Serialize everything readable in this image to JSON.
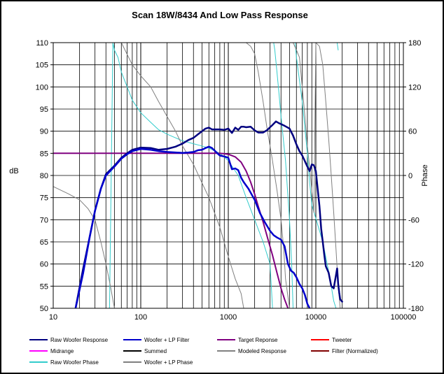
{
  "chart_data": {
    "type": "line",
    "title": "Scan 18W/8434   And Low Pass Response",
    "xlabel": "",
    "ylabel": "dB",
    "y2label": "Phase",
    "xscale": "log",
    "xlim": [
      10,
      100000
    ],
    "ylim": [
      50,
      110
    ],
    "y2lim": [
      -180,
      180
    ],
    "grid": true,
    "legend_position": "bottom",
    "x_tick_labels": [
      "10",
      "100",
      "1000",
      "10000",
      "100000"
    ],
    "y_tick_labels": [
      "110",
      "105",
      "100",
      "95",
      "90",
      "85",
      "80",
      "75",
      "70",
      "65",
      "60",
      "55",
      "50"
    ],
    "y2_tick_labels": [
      "180",
      "120",
      "60",
      "0",
      "-60",
      "-120",
      "-180"
    ],
    "legend": [
      {
        "name": "Raw Woofer Response",
        "color": "#000080"
      },
      {
        "name": "Woofer + LP Filter",
        "color": "#0000cc"
      },
      {
        "name": "Target Reponse",
        "color": "#800080"
      },
      {
        "name": "Tweeter",
        "color": "#ff0000"
      },
      {
        "name": "Midrange",
        "color": "#ff00ff"
      },
      {
        "name": "Summed",
        "color": "#000000"
      },
      {
        "name": "Modeled Response",
        "color": "#808080"
      },
      {
        "name": "Filter (Normalized)",
        "color": "#800000"
      },
      {
        "name": "Raw Woofer Phase",
        "color": "#33cccc"
      },
      {
        "name": "Woofer + LP  Phase",
        "color": "#808080"
      }
    ],
    "series": [
      {
        "name": "Raw Woofer Response",
        "axis": "left",
        "color": "#000080",
        "width": 2.5,
        "x": [
          18,
          22,
          26,
          30,
          35,
          40,
          50,
          60,
          70,
          80,
          100,
          130,
          160,
          200,
          250,
          300,
          350,
          400,
          450,
          500,
          550,
          600,
          650,
          700,
          800,
          900,
          1000,
          1100,
          1200,
          1300,
          1400,
          1500,
          1600,
          1800,
          2000,
          2200,
          2500,
          2800,
          3000,
          3200,
          3500,
          3800,
          4000,
          4300,
          4600,
          5000,
          5500,
          6000,
          6500,
          7000,
          7500,
          8000,
          8500,
          9000,
          9500,
          10000,
          10500,
          11000,
          11500,
          12000,
          12500,
          13000,
          14000,
          15000,
          16000,
          17000,
          17500,
          18000,
          18500,
          19000,
          20000
        ],
        "y": [
          50,
          59,
          66,
          72,
          77,
          80.3,
          82.2,
          84,
          85,
          85.8,
          86.3,
          86.2,
          85.8,
          86.0,
          86.5,
          87.2,
          88,
          88.5,
          89.3,
          90,
          90.6,
          90.8,
          90.4,
          90.4,
          90.4,
          90.3,
          90.6,
          89.6,
          90.8,
          90.3,
          91.0,
          91.0,
          90.9,
          91.0,
          90.2,
          89.7,
          89.7,
          90.3,
          90.9,
          91.4,
          92.2,
          91.8,
          91.6,
          91.3,
          91.0,
          90.6,
          89.0,
          87.0,
          85.5,
          84.5,
          83.2,
          82.0,
          81.0,
          82.5,
          82.3,
          81.0,
          77.0,
          73.0,
          68.0,
          65.0,
          62.0,
          59.5,
          58.0,
          55.0,
          54.5,
          57.5,
          59.0,
          55.5,
          53.5,
          52.0,
          51.5
        ]
      },
      {
        "name": "Woofer + LP Filter",
        "axis": "left",
        "color": "#0000cc",
        "width": 2.5,
        "x": [
          18,
          22,
          26,
          30,
          35,
          40,
          50,
          60,
          70,
          80,
          100,
          130,
          160,
          200,
          250,
          300,
          350,
          400,
          450,
          500,
          550,
          600,
          650,
          700,
          750,
          800,
          900,
          1000,
          1100,
          1200,
          1300,
          1400,
          1500,
          1700,
          2000,
          2300,
          2600,
          3000,
          3300,
          3600,
          4000,
          4400,
          4800,
          5200,
          5600,
          6000,
          6500,
          7000,
          7500,
          8000,
          8500
        ],
        "y": [
          50,
          58,
          66,
          72,
          77,
          80.0,
          82.0,
          83.8,
          84.8,
          85.5,
          86.0,
          85.8,
          85.5,
          85.3,
          85.2,
          85.1,
          85.2,
          85.3,
          85.7,
          85.8,
          86.2,
          86.5,
          86.2,
          85.6,
          85.0,
          84.5,
          84.3,
          84.0,
          81.4,
          81.6,
          81.2,
          79.5,
          78.5,
          77.0,
          74.5,
          71.5,
          69.5,
          67.5,
          66.5,
          66.0,
          65.5,
          64.0,
          60.0,
          58.5,
          58.0,
          57.0,
          55.5,
          54.5,
          53.0,
          51.0,
          50
        ]
      },
      {
        "name": "Target Reponse",
        "axis": "left",
        "color": "#800080",
        "width": 2,
        "x": [
          10,
          50,
          100,
          200,
          400,
          600,
          800,
          1000,
          1200,
          1400,
          1600,
          1800,
          2000,
          2200,
          2500,
          2800,
          3200,
          3600,
          4000,
          4400,
          4800
        ],
        "y": [
          85,
          85,
          85,
          85,
          85,
          85,
          85,
          84.8,
          84.2,
          83.0,
          81.0,
          78.5,
          75.8,
          73.0,
          69.5,
          66.0,
          62.0,
          58.0,
          54.5,
          52.0,
          50
        ]
      },
      {
        "name": "Raw Woofer Phase",
        "axis": "right",
        "color": "#33cccc",
        "width": 1,
        "x": [
          44,
          46,
          48,
          50,
          55,
          60,
          70,
          80,
          100,
          130,
          160,
          200,
          250,
          300,
          400,
          500,
          600,
          800,
          1000,
          1300,
          1600,
          2000,
          2500,
          3000,
          3100,
          3200,
          3300,
          3400,
          3600,
          3800,
          4000,
          4500,
          5000,
          5300,
          5500,
          5800,
          6000,
          7000,
          8000,
          8500,
          9000,
          12000,
          14000,
          15000,
          16000,
          17000,
          17500,
          18000
        ],
        "y": [
          -180,
          0,
          180,
          170,
          160,
          140,
          120,
          102,
          85,
          72,
          62,
          56,
          51,
          47,
          43,
          40,
          37,
          30,
          20,
          0,
          -30,
          -60,
          -90,
          -120,
          -150,
          -180,
          180,
          170,
          140,
          110,
          80,
          20,
          -60,
          -120,
          -180,
          180,
          160,
          100,
          30,
          -10,
          -40,
          -90,
          -130,
          -150,
          -170,
          -180,
          180,
          170
        ]
      },
      {
        "name": "Woofer + LP  Phase",
        "axis": "right",
        "color": "#808080",
        "width": 1,
        "x": [
          10,
          15,
          20,
          25,
          30,
          35,
          40,
          45,
          50,
          60,
          80,
          100,
          130,
          160,
          200,
          250,
          300,
          400,
          500,
          600,
          800,
          1000,
          1200,
          1400,
          1500,
          1600,
          1800,
          2000,
          2200,
          2500,
          2800,
          3000,
          3200,
          3600,
          4000,
          4300,
          4500,
          5000,
          5500,
          6000,
          6500,
          7000,
          7500,
          8000,
          8500,
          9000,
          9500,
          10000,
          11000,
          12000,
          13000,
          14000,
          15000,
          16000,
          17000,
          18000,
          19000,
          20000
        ],
        "y": [
          -15,
          -25,
          -33,
          -45,
          -60,
          -90,
          -120,
          -150,
          -180,
          180,
          150,
          135,
          120,
          100,
          80,
          60,
          40,
          15,
          -10,
          -30,
          -70,
          -110,
          -140,
          -160,
          -180,
          180,
          175,
          165,
          140,
          100,
          60,
          40,
          20,
          -20,
          -60,
          -100,
          -140,
          -180,
          180,
          170,
          160,
          120,
          80,
          40,
          10,
          -20,
          -50,
          180,
          175,
          150,
          100,
          50,
          0,
          -50,
          -100,
          -150,
          -180,
          -180
        ]
      },
      {
        "name": "Modeled Response",
        "axis": "right",
        "color": "#808080",
        "width": 1,
        "x": [
          20000
        ],
        "y": [
          -180
        ]
      }
    ]
  }
}
